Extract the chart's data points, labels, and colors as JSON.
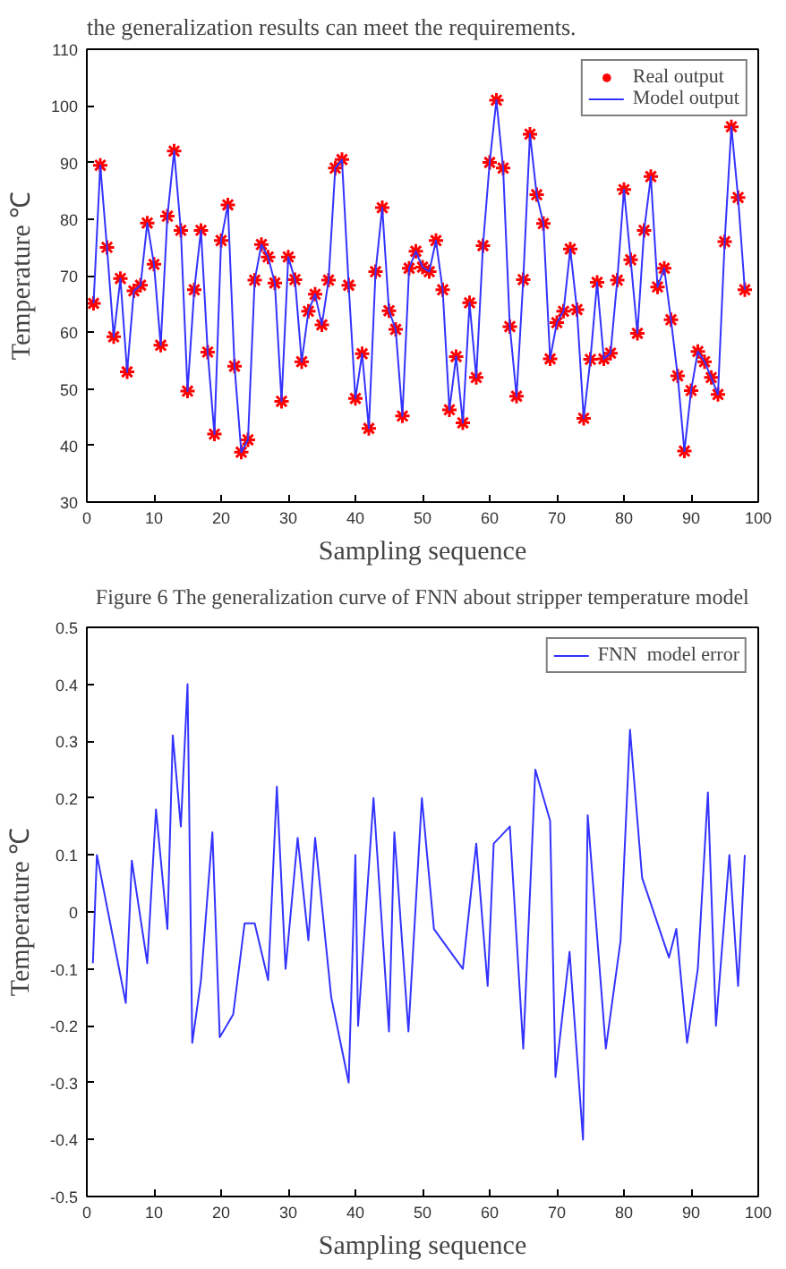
{
  "chart_data": [
    {
      "type": "line",
      "xlabel": "Sampling sequence",
      "ylabel": "Temperature ℃",
      "annotations": [
        "the generalization results can meet the requirements.",
        "Figure 6 The generalization curve of FNN about stripper temperature model"
      ],
      "xlim": [
        0,
        100
      ],
      "xticks": [
        0,
        10,
        20,
        30,
        40,
        50,
        60,
        70,
        80,
        90,
        100
      ],
      "ylim": [
        30,
        110
      ],
      "yticks": [
        30,
        40,
        50,
        60,
        70,
        80,
        90,
        100,
        110
      ],
      "grid": false,
      "legend": "top right",
      "x": [
        1,
        2,
        3,
        4,
        5,
        6,
        7,
        8,
        9,
        10,
        11,
        12,
        13,
        14,
        15,
        16,
        17,
        18,
        19,
        20,
        21,
        22,
        23,
        24,
        25,
        26,
        27,
        28,
        29,
        30,
        31,
        32,
        33,
        34,
        35,
        36,
        37,
        38,
        39,
        40,
        41,
        42,
        43,
        44,
        45,
        46,
        47,
        48,
        49,
        50,
        51,
        52,
        53,
        54,
        55,
        56,
        57,
        58,
        59,
        60,
        61,
        62,
        63,
        64,
        65,
        66,
        67,
        68,
        69,
        70,
        71,
        72,
        73,
        74,
        75,
        76,
        77,
        78,
        79,
        80,
        81,
        82,
        83,
        84,
        85,
        86,
        87,
        88,
        89,
        90,
        91,
        92,
        93,
        94,
        95,
        96,
        97,
        98
      ],
      "series": [
        {
          "name": "Real output",
          "type": "scatter",
          "marker": "cross",
          "color": "#ff0000",
          "values": [
            65.1,
            89.5,
            75,
            59.2,
            69.5,
            53,
            67.3,
            68.3,
            79.3,
            72,
            57.7,
            80.5,
            92,
            78,
            49.6,
            67.5,
            78,
            56.5,
            42,
            76.2,
            82.5,
            54,
            38.8,
            41,
            69.2,
            75.5,
            73.3,
            68.7,
            47.8,
            73.3,
            69.3,
            54.8,
            63.7,
            66.7,
            61.3,
            69.2,
            89,
            90.5,
            68.3,
            48.3,
            56.2,
            43,
            70.7,
            82,
            63.8,
            60.5,
            45.2,
            71.3,
            74.3,
            71.5,
            70.7,
            76.2,
            67.5,
            46.3,
            55.7,
            44,
            65.2,
            52,
            75.3,
            90,
            101,
            89,
            61,
            48.7,
            69.3,
            95,
            84.3,
            79.2,
            55.3,
            61.7,
            63.7,
            74.7,
            64,
            44.8,
            55.2,
            68.8,
            55.3,
            56.3,
            69.2,
            85.2,
            72.8,
            59.8,
            78,
            87.5,
            68,
            71.3,
            62.2,
            52.3,
            39,
            49.7,
            56.6,
            54.8,
            52,
            49,
            76,
            96.3,
            83.8,
            67.5
          ]
        },
        {
          "name": "Model output",
          "line_style": "solid",
          "color": "#3333ff",
          "values": [
            65.1,
            89.5,
            75,
            59.2,
            69.5,
            53,
            67.3,
            68.3,
            79.3,
            72,
            57.7,
            80.5,
            92,
            78,
            49.6,
            67.5,
            78,
            56.5,
            42,
            76.2,
            82.5,
            54,
            38.8,
            41,
            69.2,
            75.5,
            73.3,
            68.7,
            47.8,
            73.3,
            69.3,
            54.8,
            63.7,
            66.7,
            61.3,
            69.2,
            89,
            90.5,
            68.3,
            48.3,
            56.2,
            43,
            70.7,
            82,
            63.8,
            60.5,
            45.2,
            71.3,
            74.3,
            71.5,
            70.7,
            76.2,
            67.5,
            46.3,
            55.7,
            44,
            65.2,
            52,
            75.3,
            90,
            101,
            89,
            61,
            48.7,
            69.3,
            95,
            84.3,
            79.2,
            55.3,
            61.7,
            63.7,
            74.7,
            64,
            44.8,
            55.2,
            68.8,
            55.3,
            56.3,
            69.2,
            85.2,
            72.8,
            59.8,
            78,
            87.5,
            68,
            71.3,
            62.2,
            52.3,
            39,
            49.7,
            56.6,
            54.8,
            52,
            49,
            76,
            96.3,
            83.8,
            67.5
          ]
        }
      ]
    },
    {
      "type": "line",
      "xlabel": "Sampling sequence",
      "ylabel": "Temperature ℃",
      "xlim": [
        0,
        100
      ],
      "xticks": [
        0,
        10,
        20,
        30,
        40,
        50,
        60,
        70,
        80,
        90,
        100
      ],
      "ylim": [
        -0.5,
        0.5
      ],
      "yticks": [
        -0.5,
        -0.4,
        -0.3,
        -0.2,
        -0.1,
        0,
        0.1,
        0.2,
        0.3,
        0.4,
        0.5
      ],
      "grid": false,
      "legend": "top right",
      "x": [
        0.9,
        1.5,
        5.8,
        6.7,
        9,
        10.3,
        12,
        12.8,
        14,
        15,
        15.7,
        17,
        18.7,
        19.8,
        21.8,
        23.5,
        25,
        27,
        28.3,
        29.6,
        31.4,
        33,
        34,
        36.4,
        39,
        40,
        40.4,
        42.7,
        45,
        45.8,
        47.9,
        49.9,
        51.7,
        56,
        58,
        59.7,
        60.6,
        63,
        65,
        66.8,
        69,
        69.8,
        71.9,
        73.9,
        74.6,
        77.3,
        79.5,
        80.9,
        82.7,
        86.7,
        87.8,
        89.4,
        91,
        92.5,
        93.7,
        95.7,
        97,
        98
      ],
      "series": [
        {
          "name": "FNN  model error",
          "line_style": "solid",
          "color": "#3333ff",
          "values": [
            -0.09,
            0.1,
            -0.16,
            0.09,
            -0.09,
            0.18,
            -0.03,
            0.31,
            0.15,
            0.4,
            -0.23,
            -0.12,
            0.14,
            -0.22,
            -0.18,
            -0.02,
            -0.02,
            -0.12,
            0.22,
            -0.1,
            0.13,
            -0.05,
            0.13,
            -0.15,
            -0.3,
            0.1,
            -0.2,
            0.2,
            -0.21,
            0.14,
            -0.21,
            0.2,
            -0.03,
            -0.1,
            0.12,
            -0.13,
            0.12,
            0.15,
            -0.24,
            0.25,
            0.16,
            -0.29,
            -0.07,
            -0.4,
            0.17,
            -0.24,
            -0.05,
            0.32,
            0.06,
            -0.08,
            -0.03,
            -0.23,
            -0.1,
            0.21,
            -0.2,
            0.1,
            -0.13,
            0.1
          ]
        }
      ]
    }
  ]
}
